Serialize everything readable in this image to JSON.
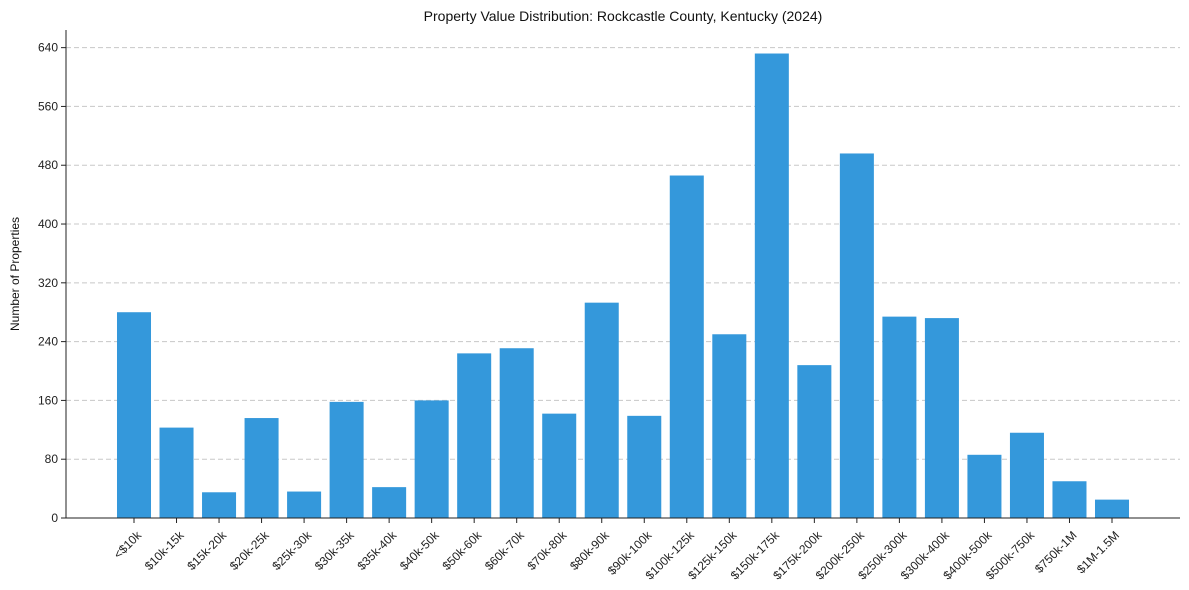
{
  "chart_data": {
    "type": "bar",
    "title": "Property Value Distribution: Rockcastle County, Kentucky (2024)",
    "xlabel": "",
    "ylabel": "Number of Properties",
    "categories": [
      "<$10k",
      "$10k-15k",
      "$15k-20k",
      "$20k-25k",
      "$25k-30k",
      "$30k-35k",
      "$35k-40k",
      "$40k-50k",
      "$50k-60k",
      "$60k-70k",
      "$70k-80k",
      "$80k-90k",
      "$90k-100k",
      "$100k-125k",
      "$125k-150k",
      "$150k-175k",
      "$175k-200k",
      "$200k-250k",
      "$250k-300k",
      "$300k-400k",
      "$400k-500k",
      "$500k-750k",
      "$750k-1M",
      "$1M-1.5M"
    ],
    "values": [
      280,
      123,
      35,
      136,
      36,
      158,
      42,
      160,
      224,
      231,
      142,
      293,
      139,
      466,
      250,
      632,
      208,
      496,
      274,
      272,
      86,
      116,
      50,
      25
    ],
    "ylim": [
      0,
      664
    ],
    "yticks": [
      0,
      80,
      160,
      240,
      320,
      400,
      480,
      560,
      640
    ],
    "grid": "y-dashed",
    "bar_color": "#3498db"
  }
}
